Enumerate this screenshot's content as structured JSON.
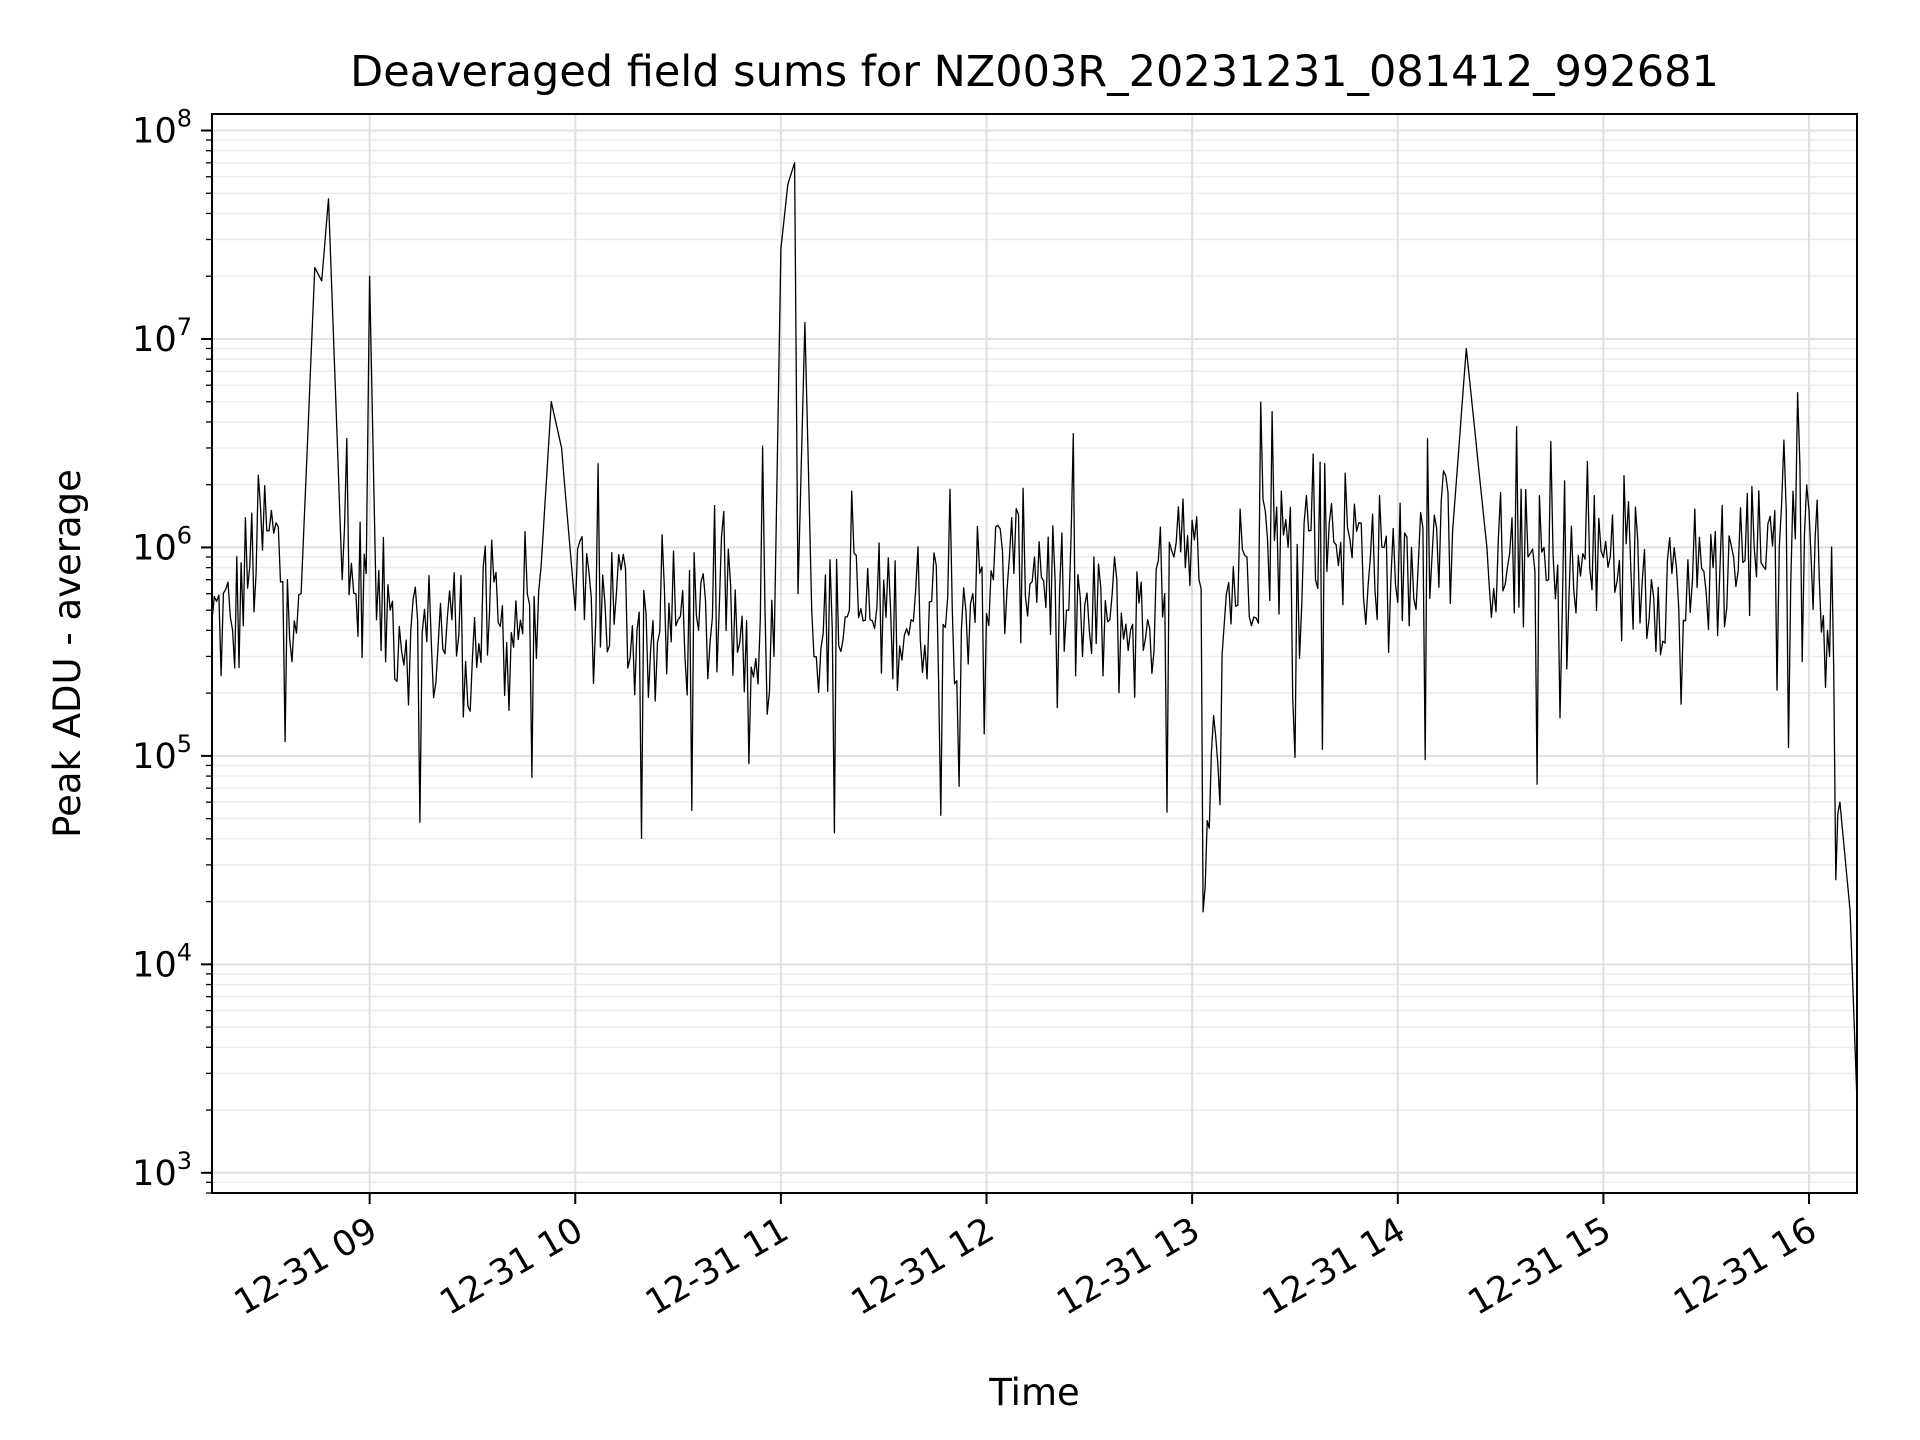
{
  "chart_data": {
    "type": "line",
    "title": "Deaveraged field sums for NZ003R_20231231_081412_992681",
    "xlabel": "Time",
    "ylabel": "Peak ADU - average",
    "yscale": "log",
    "ylim": [
      800,
      120000000
    ],
    "xlim": [
      "2023-12-31 08:14",
      "2023-12-31 16:14"
    ],
    "grid": true,
    "line_color": "#000000",
    "x_ticks": [
      {
        "value": "2023-12-31 09:00",
        "label": "12-31 09"
      },
      {
        "value": "2023-12-31 10:00",
        "label": "12-31 10"
      },
      {
        "value": "2023-12-31 11:00",
        "label": "12-31 11"
      },
      {
        "value": "2023-12-31 12:00",
        "label": "12-31 12"
      },
      {
        "value": "2023-12-31 13:00",
        "label": "12-31 13"
      },
      {
        "value": "2023-12-31 14:00",
        "label": "12-31 14"
      },
      {
        "value": "2023-12-31 15:00",
        "label": "12-31 15"
      },
      {
        "value": "2023-12-31 16:00",
        "label": "12-31 16"
      }
    ],
    "y_ticks": [
      {
        "value": 1000,
        "base": "10",
        "exp": "3"
      },
      {
        "value": 10000,
        "base": "10",
        "exp": "4"
      },
      {
        "value": 100000,
        "base": "10",
        "exp": "5"
      },
      {
        "value": 1000000,
        "base": "10",
        "exp": "6"
      },
      {
        "value": 10000000,
        "base": "10",
        "exp": "7"
      },
      {
        "value": 100000000,
        "base": "10",
        "exp": "8"
      }
    ],
    "series": [
      {
        "x": [
          "2023-12-31 08:14",
          "2023-12-31 08:20",
          "2023-12-31 08:25",
          "2023-12-31 08:30",
          "2023-12-31 08:36",
          "2023-12-31 08:40",
          "2023-12-31 08:44",
          "2023-12-31 08:46",
          "2023-12-31 08:48",
          "2023-12-31 08:52",
          "2023-12-31 08:56",
          "2023-12-31 08:59",
          "2023-12-31 09:00",
          "2023-12-31 09:02",
          "2023-12-31 09:06",
          "2023-12-31 09:12",
          "2023-12-31 09:18",
          "2023-12-31 09:24",
          "2023-12-31 09:30",
          "2023-12-31 09:35",
          "2023-12-31 09:40",
          "2023-12-31 09:46",
          "2023-12-31 09:50",
          "2023-12-31 09:53",
          "2023-12-31 09:56",
          "2023-12-31 10:00",
          "2023-12-31 10:06",
          "2023-12-31 10:12",
          "2023-12-31 10:18",
          "2023-12-31 10:24",
          "2023-12-31 10:30",
          "2023-12-31 10:36",
          "2023-12-31 10:42",
          "2023-12-31 10:48",
          "2023-12-31 10:54",
          "2023-12-31 10:58",
          "2023-12-31 11:00",
          "2023-12-31 11:02",
          "2023-12-31 11:04",
          "2023-12-31 11:05",
          "2023-12-31 11:07",
          "2023-12-31 11:09",
          "2023-12-31 11:15",
          "2023-12-31 11:20",
          "2023-12-31 11:26",
          "2023-12-31 11:32",
          "2023-12-31 11:38",
          "2023-12-31 11:44",
          "2023-12-31 11:50",
          "2023-12-31 11:56",
          "2023-12-31 12:02",
          "2023-12-31 12:08",
          "2023-12-31 12:14",
          "2023-12-31 12:20",
          "2023-12-31 12:24",
          "2023-12-31 12:30",
          "2023-12-31 12:36",
          "2023-12-31 12:42",
          "2023-12-31 12:47",
          "2023-12-31 12:52",
          "2023-12-31 12:58",
          "2023-12-31 13:02",
          "2023-12-31 13:05",
          "2023-12-31 13:10",
          "2023-12-31 13:16",
          "2023-12-31 13:22",
          "2023-12-31 13:28",
          "2023-12-31 13:34",
          "2023-12-31 13:40",
          "2023-12-31 13:46",
          "2023-12-31 13:52",
          "2023-12-31 13:58",
          "2023-12-31 14:04",
          "2023-12-31 14:10",
          "2023-12-31 14:16",
          "2023-12-31 14:20",
          "2023-12-31 14:26",
          "2023-12-31 14:32",
          "2023-12-31 14:38",
          "2023-12-31 14:44",
          "2023-12-31 14:50",
          "2023-12-31 14:56",
          "2023-12-31 15:02",
          "2023-12-31 15:08",
          "2023-12-31 15:14",
          "2023-12-31 15:20",
          "2023-12-31 15:26",
          "2023-12-31 15:32",
          "2023-12-31 15:38",
          "2023-12-31 15:44",
          "2023-12-31 15:48",
          "2023-12-31 15:52",
          "2023-12-31 15:56",
          "2023-12-31 16:00",
          "2023-12-31 16:03",
          "2023-12-31 16:06",
          "2023-12-31 16:09",
          "2023-12-31 16:12",
          "2023-12-31 16:14"
        ],
        "y": [
          450000,
          400000,
          800000,
          1200000,
          700000,
          600000,
          22000000,
          19000000,
          47000000,
          700000,
          600000,
          750000,
          20000000,
          450000,
          500000,
          400000,
          350000,
          450000,
          300000,
          500000,
          350000,
          600000,
          800000,
          5000000,
          3000000,
          500000,
          450000,
          600000,
          400000,
          350000,
          450000,
          400000,
          500000,
          350000,
          450000,
          300000,
          27000000,
          55000000,
          70000000,
          600000,
          12000000,
          500000,
          400000,
          500000,
          450000,
          500000,
          450000,
          550000,
          500000,
          600000,
          700000,
          750000,
          900000,
          700000,
          500000,
          400000,
          450000,
          400000,
          450000,
          600000,
          800000,
          700000,
          45000,
          600000,
          900000,
          1100000,
          1000000,
          1200000,
          1300000,
          1100000,
          900000,
          700000,
          1000000,
          900000,
          1200000,
          9000000,
          1000000,
          800000,
          900000,
          700000,
          600000,
          800000,
          900000,
          800000,
          700000,
          750000,
          700000,
          800000,
          900000,
          1000000,
          1300000,
          1600000,
          1100000,
          1500000,
          700000,
          300000,
          60000,
          18000,
          2200
        ]
      }
    ]
  }
}
